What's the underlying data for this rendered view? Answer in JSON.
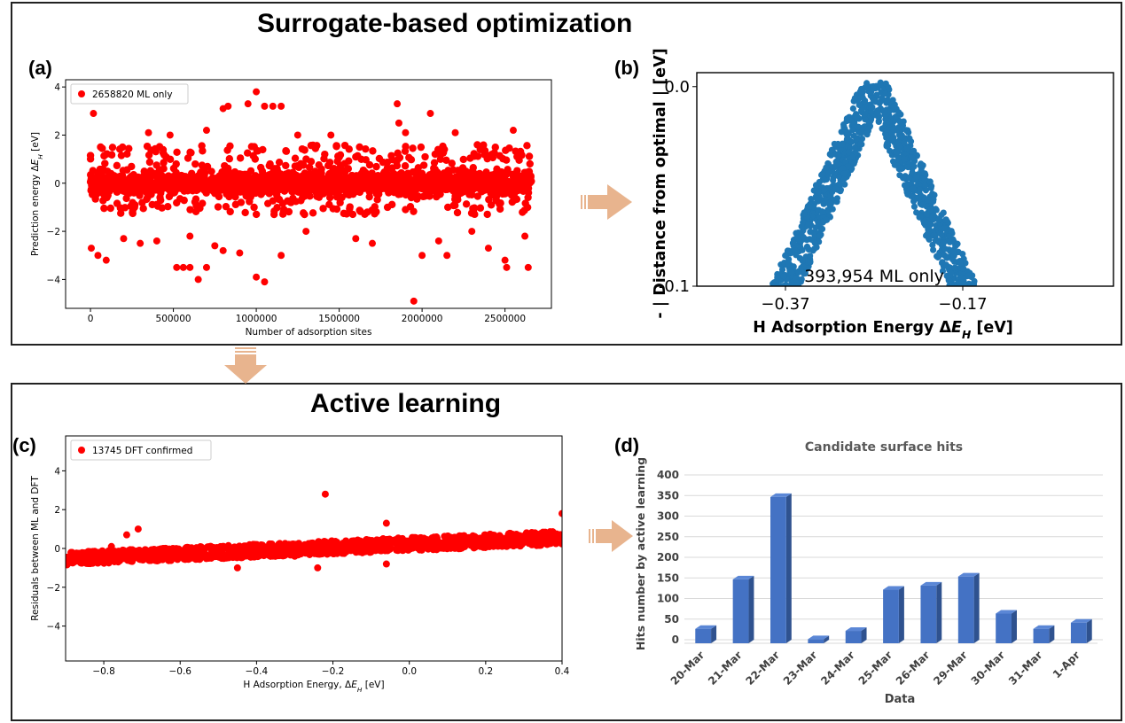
{
  "sections": {
    "top_title": "Surrogate-based optimization",
    "bottom_title": "Active learning"
  },
  "panel_labels": {
    "a": "(a)",
    "b": "(b)",
    "c": "(c)",
    "d": "(d)"
  },
  "colors": {
    "red": "#ff0000",
    "blue": "#1f77b4",
    "bar": "#4472c4",
    "bar_dark": "#2f528f",
    "arrow": "#e8b48e"
  },
  "chart_data": [
    {
      "id": "a",
      "type": "scatter",
      "title": "",
      "xlabel": "Number of adsorption sites",
      "ylabel": "Prediction energy ΔE_H [eV]",
      "xlim": [
        -150000,
        2780000
      ],
      "ylim": [
        -5.2,
        4.3
      ],
      "xticks": [
        0,
        500000,
        1000000,
        1500000,
        2000000,
        2500000
      ],
      "xtick_labels": [
        "0",
        "500000",
        "1000000",
        "1500000",
        "2000000",
        "2500000"
      ],
      "yticks": [
        -4,
        -2,
        0,
        2,
        4
      ],
      "ytick_labels": [
        "−4",
        "−2",
        "0",
        "2",
        "4"
      ],
      "legend": "2658820 ML only",
      "legend_position": "top-left",
      "color": "#ff0000",
      "band": {
        "x_start": 0,
        "x_end": 2658820,
        "y_low": -1.3,
        "y_high": 1.6
      },
      "points": [
        [
          18000,
          2.9
        ],
        [
          5000,
          -2.7
        ],
        [
          45000,
          -3.0
        ],
        [
          95000,
          -3.2
        ],
        [
          520000,
          -3.5
        ],
        [
          560000,
          -3.5
        ],
        [
          600000,
          -3.5
        ],
        [
          650000,
          -4.0
        ],
        [
          700000,
          -3.5
        ],
        [
          800000,
          3.1
        ],
        [
          830000,
          3.2
        ],
        [
          950000,
          3.3
        ],
        [
          1000000,
          3.8
        ],
        [
          1050000,
          3.2
        ],
        [
          1100000,
          3.2
        ],
        [
          1150000,
          3.2
        ],
        [
          1000000,
          -3.9
        ],
        [
          1050000,
          -4.1
        ],
        [
          1150000,
          -3.0
        ],
        [
          1850000,
          3.3
        ],
        [
          1860000,
          2.5
        ],
        [
          1950000,
          -4.9
        ],
        [
          2050000,
          2.9
        ],
        [
          2150000,
          -3.0
        ],
        [
          2500000,
          -3.2
        ],
        [
          2510000,
          -3.5
        ],
        [
          2640000,
          -3.5
        ],
        [
          2620000,
          -2.2
        ],
        [
          2300000,
          -2.0
        ],
        [
          1700000,
          -2.5
        ],
        [
          1600000,
          -2.3
        ],
        [
          300000,
          -2.5
        ],
        [
          400000,
          -2.4
        ],
        [
          200000,
          -2.3
        ],
        [
          800000,
          -2.8
        ],
        [
          900000,
          -2.9
        ],
        [
          750000,
          -2.6
        ],
        [
          1300000,
          -2.0
        ],
        [
          2400000,
          -2.7
        ],
        [
          2000000,
          -3.0
        ],
        [
          350000,
          2.1
        ],
        [
          700000,
          2.2
        ],
        [
          1250000,
          2.0
        ],
        [
          2200000,
          2.1
        ],
        [
          2550000,
          2.2
        ],
        [
          1450000,
          2.0
        ],
        [
          600000,
          -2.2
        ],
        [
          2100000,
          -2.4
        ],
        [
          480000,
          2.0
        ],
        [
          1900000,
          2.1
        ]
      ]
    },
    {
      "id": "b",
      "type": "scatter",
      "title": "",
      "xlabel": "H Adsorption Energy ΔE_H [eV]",
      "ylabel": "- | Distance from optimal | [eV]",
      "xlim": [
        -0.47,
        0.0
      ],
      "ylim": [
        -0.1,
        0.007
      ],
      "xticks": [
        -0.37,
        -0.17
      ],
      "xtick_labels": [
        "−0.37",
        "−0.17"
      ],
      "yticks": [
        0.0,
        -0.1
      ],
      "ytick_labels": [
        "0.0",
        "-0.1"
      ],
      "annotation": "393,954 ML only",
      "color": "#1f77b4",
      "optimum_x": -0.27,
      "band_halfwidth_x": 0.017
    },
    {
      "id": "c",
      "type": "scatter",
      "title": "",
      "xlabel": "H Adsorption Energy, ΔE_H [eV]",
      "ylabel": "Residuals between ML and DFT",
      "xlim": [
        -0.9,
        0.4
      ],
      "ylim": [
        -5.8,
        5.8
      ],
      "xticks": [
        -0.8,
        -0.6,
        -0.4,
        -0.2,
        0.0,
        0.2,
        0.4
      ],
      "xtick_labels": [
        "−0.8",
        "−0.6",
        "−0.4",
        "−0.2",
        "0.0",
        "0.2",
        "0.4"
      ],
      "yticks": [
        -4,
        -2,
        0,
        2,
        4
      ],
      "ytick_labels": [
        "−4",
        "−2",
        "0",
        "2",
        "4"
      ],
      "legend": "13745 DFT confirmed",
      "legend_position": "top-left",
      "color": "#ff0000",
      "band": {
        "x_start": -0.9,
        "x_end": 0.4,
        "y_low_start": -0.85,
        "y_high_start": -0.2,
        "y_low_end": 0.2,
        "y_high_end": 0.9
      },
      "points": [
        [
          -0.74,
          0.7
        ],
        [
          -0.71,
          1.0
        ],
        [
          -0.22,
          2.8
        ],
        [
          -0.06,
          1.3
        ],
        [
          0.4,
          1.8
        ],
        [
          -0.45,
          -1.0
        ],
        [
          -0.24,
          -1.0
        ],
        [
          -0.06,
          -0.8
        ],
        [
          -0.78,
          0.1
        ],
        [
          -0.3,
          -0.4
        ]
      ]
    },
    {
      "id": "d",
      "type": "bar",
      "title": "Candidate surface hits",
      "xlabel": "Data",
      "ylabel": "Hits number by active learning",
      "ylim": [
        0,
        400
      ],
      "yticks": [
        0,
        50,
        100,
        150,
        200,
        250,
        300,
        350,
        400
      ],
      "ytick_labels": [
        "0",
        "50",
        "100",
        "150",
        "200",
        "250",
        "300",
        "350",
        "400"
      ],
      "categories": [
        "20-Mar",
        "21-Mar",
        "22-Mar",
        "23-Mar",
        "24-Mar",
        "25-Mar",
        "26-Mar",
        "29-Mar",
        "30-Mar",
        "31-Mar",
        "1-Apr"
      ],
      "values": [
        35,
        155,
        355,
        10,
        30,
        130,
        140,
        162,
        72,
        35,
        50
      ],
      "grid": true
    }
  ]
}
